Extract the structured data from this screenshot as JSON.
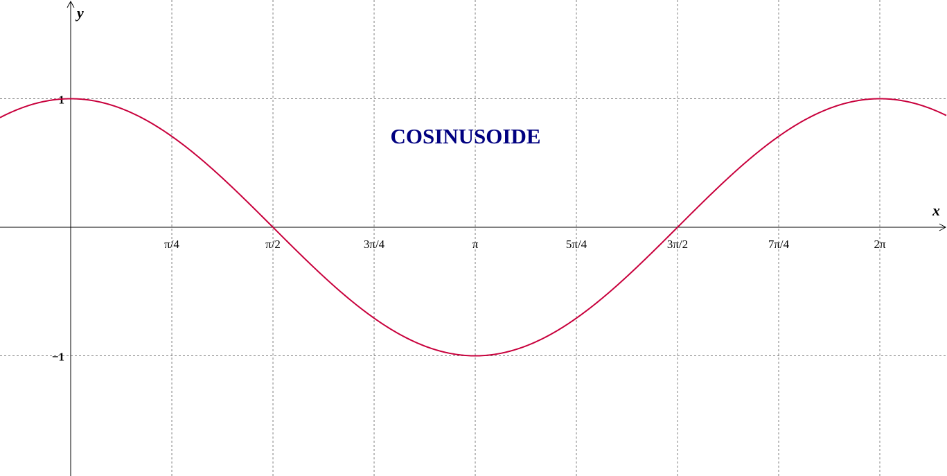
{
  "chart_data": {
    "type": "line",
    "title": "COSINUSOIDE",
    "xlabel": "x",
    "ylabel": "y",
    "function": "cos(x)",
    "xlim": [
      -0.549,
      6.805
    ],
    "ylim": [
      -1.935,
      1.768
    ],
    "x_ticks": [
      {
        "value": 0.7853981634,
        "label": "π/4"
      },
      {
        "value": 1.5707963268,
        "label": "π/2"
      },
      {
        "value": 2.3561944902,
        "label": "3π/4"
      },
      {
        "value": 3.1415926536,
        "label": "π"
      },
      {
        "value": 3.926990817,
        "label": "5π/4"
      },
      {
        "value": 4.7123889804,
        "label": "3π/2"
      },
      {
        "value": 5.4977871438,
        "label": "7π/4"
      },
      {
        "value": 6.2831853072,
        "label": "2π"
      }
    ],
    "y_ticks": [
      {
        "value": 1,
        "label": "1"
      },
      {
        "value": -1,
        "label": "−1"
      }
    ],
    "grid": true,
    "colors": {
      "curve": "#c8003c",
      "title": "#000080",
      "grid": "#808080",
      "axes": "#000000"
    }
  }
}
